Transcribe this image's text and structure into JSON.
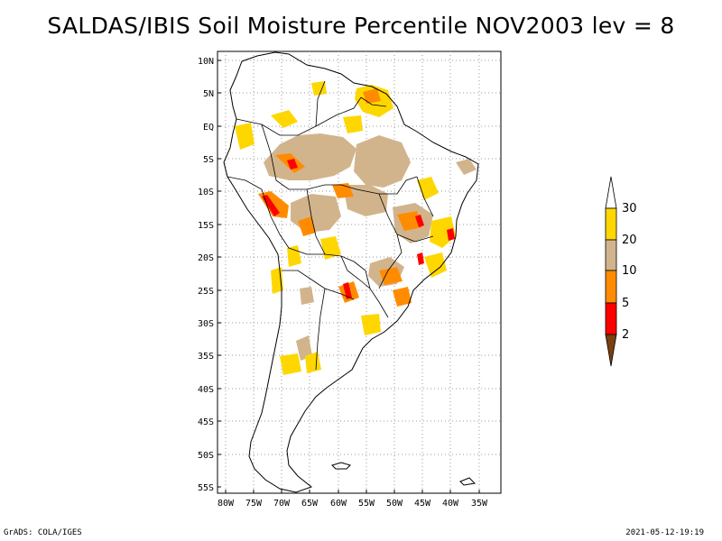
{
  "title": "SALDAS/IBIS Soil Moisture Percentile NOV2003 lev = 8",
  "footer_left": "GrADS: COLA/IGES",
  "footer_right": "2021-05-12-19:19",
  "lat_labels": [
    "10N",
    "5N",
    "EQ",
    "5S",
    "10S",
    "15S",
    "20S",
    "25S",
    "30S",
    "35S",
    "40S",
    "45S",
    "50S",
    "55S"
  ],
  "lon_labels": [
    "80W",
    "75W",
    "70W",
    "65W",
    "60W",
    "55W",
    "50W",
    "45W",
    "40W",
    "35W"
  ],
  "colorbar": {
    "levels": [
      "2",
      "5",
      "10",
      "20",
      "30"
    ],
    "colors": [
      "#7a4010",
      "#ff0000",
      "#ff8c00",
      "#d2b48c",
      "#ffd700",
      "#ffffff"
    ]
  }
}
